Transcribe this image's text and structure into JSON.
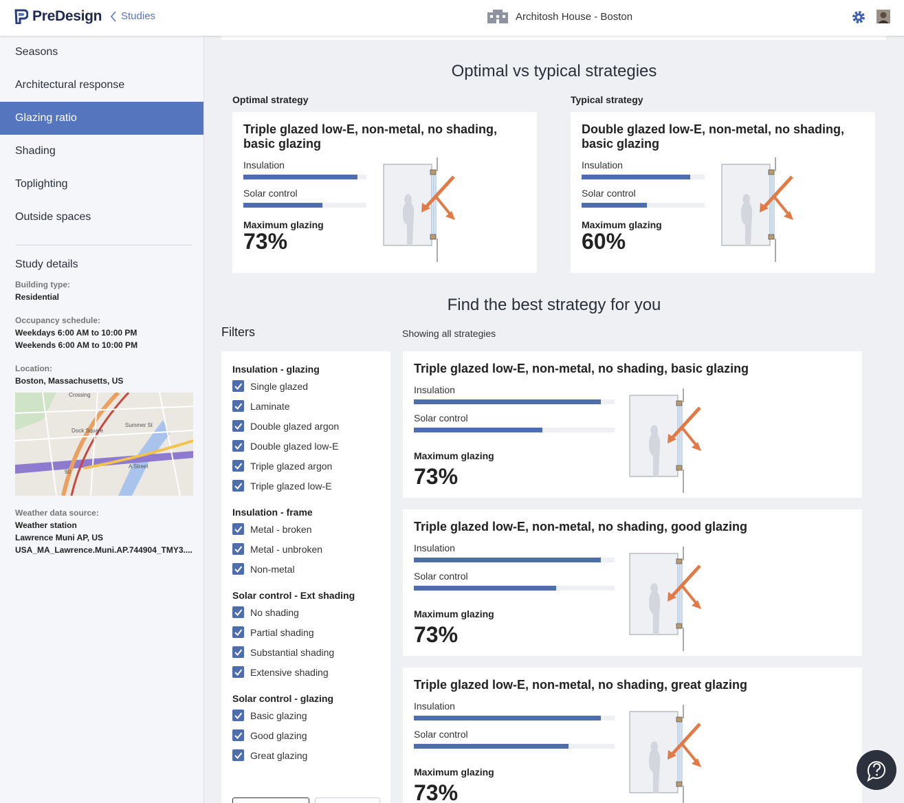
{
  "header": {
    "logo": "PreDesign",
    "back": "Studies",
    "project": "Architosh House - Boston"
  },
  "sidebar": {
    "nav": [
      "Seasons",
      "Architectural response",
      "Glazing ratio",
      "Shading",
      "Toplighting",
      "Outside spaces"
    ],
    "study_title": "Study details",
    "details": [
      {
        "label": "Building type:",
        "lines": [
          "Residential"
        ]
      },
      {
        "label": "Occupancy schedule:",
        "lines": [
          "Weekdays 6:00 AM to 10:00 PM",
          "Weekends 6:00 AM to 10:00 PM"
        ]
      },
      {
        "label": "Location:",
        "lines": [
          "Boston, Massachusetts, US"
        ]
      },
      {
        "label": "Weather data source:",
        "lines": [
          "Weather station",
          "Lawrence Muni AP, US",
          "USA_MA_Lawrence.Muni.AP.744904_TMY3...."
        ]
      }
    ],
    "map_labels": [
      "Crossing",
      "Dock Square",
      "Summer St",
      "90",
      "A Street"
    ]
  },
  "main": {
    "comparison_title": "Optimal vs typical strategies",
    "optimal": {
      "heading": "Optimal strategy",
      "name": "Triple glazed low-E, non-metal, no shading, basic glazing",
      "bars": [
        {
          "label": "Insulation",
          "value": 93
        },
        {
          "label": "Solar control",
          "value": 64
        }
      ],
      "max_label": "Maximum glazing",
      "max_value": "73%"
    },
    "typical": {
      "heading": "Typical strategy",
      "name": "Double glazed low-E, non-metal, no shading, basic glazing",
      "bars": [
        {
          "label": "Insulation",
          "value": 88
        },
        {
          "label": "Solar control",
          "value": 53
        }
      ],
      "max_label": "Maximum glazing",
      "max_value": "60%"
    },
    "find_title": "Find the best strategy for you",
    "filters_title": "Filters",
    "showing": "Showing all strategies",
    "filter_groups": [
      {
        "title": "Insulation - glazing",
        "options": [
          "Single glazed",
          "Laminate",
          "Double glazed argon",
          "Double glazed low-E",
          "Triple glazed argon",
          "Triple glazed low-E"
        ]
      },
      {
        "title": "Insulation - frame",
        "options": [
          "Metal - broken",
          "Metal - unbroken",
          "Non-metal"
        ]
      },
      {
        "title": "Solar control - Ext shading",
        "options": [
          "No shading",
          "Partial shading",
          "Substantial shading",
          "Extensive shading"
        ]
      },
      {
        "title": "Solar control - glazing",
        "options": [
          "Basic glazing",
          "Good glazing",
          "Great glazing"
        ]
      }
    ],
    "strategies": [
      {
        "name": "Triple glazed low-E, non-metal, no shading, basic glazing",
        "bars": [
          {
            "label": "Insulation",
            "value": 93
          },
          {
            "label": "Solar control",
            "value": 64
          }
        ],
        "max_label": "Maximum glazing",
        "max_value": "73%"
      },
      {
        "name": "Triple glazed low-E, non-metal, no shading, good glazing",
        "bars": [
          {
            "label": "Insulation",
            "value": 93
          },
          {
            "label": "Solar control",
            "value": 71
          }
        ],
        "max_label": "Maximum glazing",
        "max_value": "73%"
      },
      {
        "name": "Triple glazed low-E, non-metal, no shading, great glazing",
        "bars": [
          {
            "label": "Insulation",
            "value": 93
          },
          {
            "label": "Solar control",
            "value": 77
          }
        ],
        "max_label": "Maximum glazing",
        "max_value": "73%"
      }
    ]
  }
}
